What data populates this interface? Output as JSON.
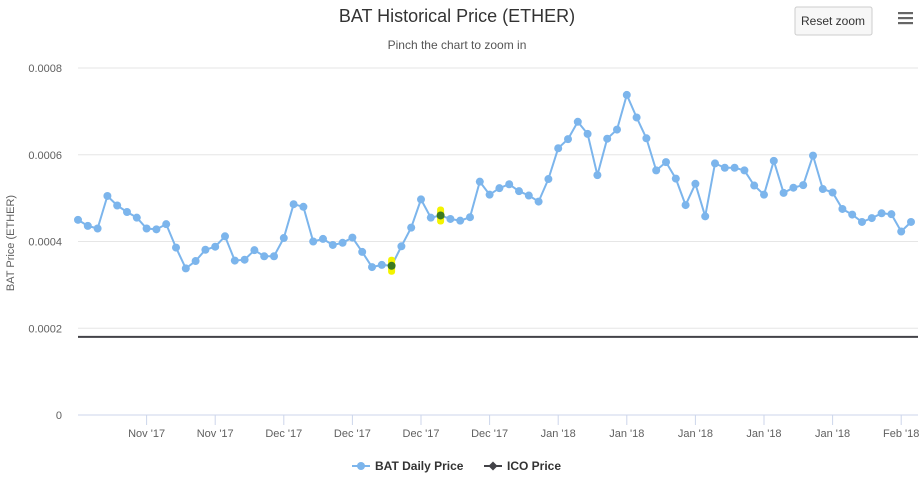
{
  "chart_data": {
    "type": "line",
    "title": "BAT Historical Price (ETHER)",
    "subtitle": "Pinch the chart to zoom in",
    "ylabel": "BAT Price (ETHER)",
    "ylim": [
      0,
      0.0008
    ],
    "yticks": [
      {
        "value": 0,
        "label": "0"
      },
      {
        "value": 0.0002,
        "label": "0.0002"
      },
      {
        "value": 0.0004,
        "label": "0.0004"
      },
      {
        "value": 0.0006,
        "label": "0.0006"
      },
      {
        "value": 0.0008,
        "label": "0.0008"
      }
    ],
    "xticks": [
      {
        "index": 7,
        "label": "Nov '17"
      },
      {
        "index": 14,
        "label": "Nov '17"
      },
      {
        "index": 21,
        "label": "Dec '17"
      },
      {
        "index": 28,
        "label": "Dec '17"
      },
      {
        "index": 35,
        "label": "Dec '17"
      },
      {
        "index": 42,
        "label": "Dec '17"
      },
      {
        "index": 49,
        "label": "Jan '18"
      },
      {
        "index": 56,
        "label": "Jan '18"
      },
      {
        "index": 63,
        "label": "Jan '18"
      },
      {
        "index": 70,
        "label": "Jan '18"
      },
      {
        "index": 77,
        "label": "Jan '18"
      },
      {
        "index": 84,
        "label": "Feb '18"
      }
    ],
    "x_count": 86,
    "series": [
      {
        "name": "BAT Daily Price",
        "color": "#7cb5ec",
        "values": [
          0.00045,
          0.000436,
          0.00043,
          0.000505,
          0.000483,
          0.000468,
          0.000455,
          0.00043,
          0.000428,
          0.00044,
          0.000386,
          0.000338,
          0.000355,
          0.000381,
          0.000388,
          0.000412,
          0.000356,
          0.000358,
          0.00038,
          0.000366,
          0.000366,
          0.000408,
          0.000486,
          0.00048,
          0.0004,
          0.000406,
          0.000392,
          0.000397,
          0.000409,
          0.000376,
          0.000341,
          0.000346,
          0.000344,
          0.000389,
          0.000432,
          0.000497,
          0.000455,
          0.00046,
          0.000452,
          0.000448,
          0.000456,
          0.000538,
          0.000508,
          0.000523,
          0.000532,
          0.000516,
          0.000506,
          0.000492,
          0.000544,
          0.000615,
          0.000636,
          0.000676,
          0.000648,
          0.000553,
          0.000637,
          0.000658,
          0.000738,
          0.000686,
          0.000638,
          0.000564,
          0.000583,
          0.000545,
          0.000484,
          0.000533,
          0.000458,
          0.00058,
          0.00057,
          0.00057,
          0.000564,
          0.000529,
          0.000508,
          0.000586,
          0.000512,
          0.000524,
          0.00053,
          0.000598,
          0.000521,
          0.000513,
          0.000475,
          0.000462,
          0.000445,
          0.000454,
          0.000465,
          0.000463,
          0.000423,
          0.000445
        ],
        "highlighted_points": [
          32,
          37
        ]
      },
      {
        "name": "ICO Price",
        "color": "#434348",
        "constant": 0.00018
      }
    ],
    "legend": {
      "placement": "bottom-center"
    },
    "grid": true
  },
  "toolbar": {
    "reset_zoom_label": "Reset zoom",
    "menu_icon": "hamburger-menu-icon"
  },
  "colors": {
    "grid": "#e6e6e6",
    "axis": "#ccd6eb",
    "highlight": "#f3f300"
  }
}
